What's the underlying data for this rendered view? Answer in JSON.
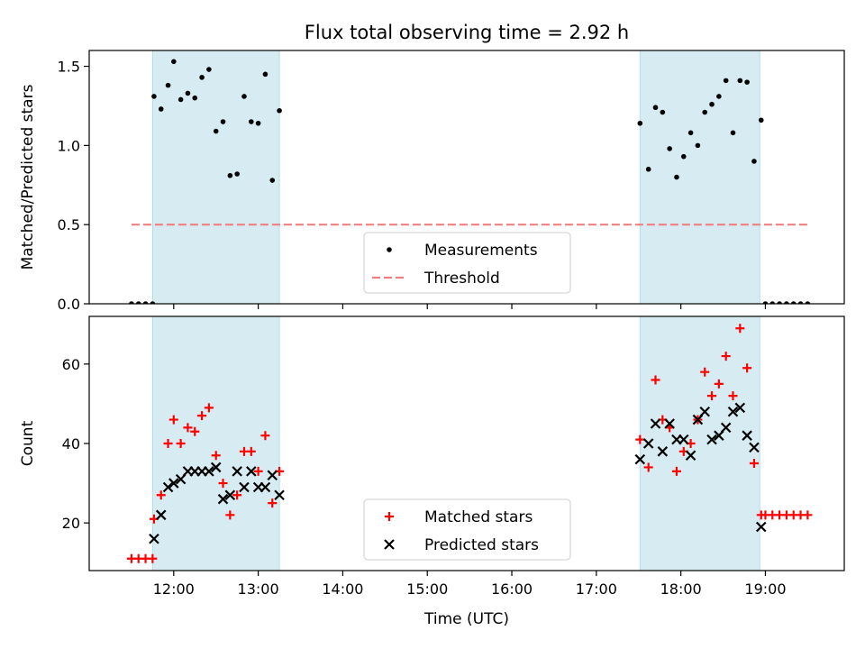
{
  "figure": {
    "title": "Flux total observing time = 2.92 h"
  },
  "chart_data": [
    {
      "type": "scatter",
      "panel": "top",
      "title": "Flux total observing time = 2.92 h",
      "ylabel": "Matched/Predicted stars",
      "xlabel": "",
      "x_unit": "time of day (UTC)",
      "xlim": [
        "11:00",
        "19:56"
      ],
      "ylim": [
        0,
        1.6
      ],
      "yticks": [
        0.0,
        0.5,
        1.0,
        1.5
      ],
      "ytick_labels": [
        "0.0",
        "0.5",
        "1.0",
        "1.5"
      ],
      "xticks": [
        "12:00",
        "13:00",
        "14:00",
        "15:00",
        "16:00",
        "17:00",
        "18:00",
        "19:00"
      ],
      "xtick_labels_shown": false,
      "shaded_spans": [
        {
          "start": "11:45",
          "end": "13:15",
          "color": "#add8e6"
        },
        {
          "start": "17:31",
          "end": "18:56",
          "color": "#add8e6"
        }
      ],
      "legend": {
        "placement": "lower center",
        "entries": [
          {
            "label": "Measurements",
            "marker": "dot",
            "color": "#000000"
          },
          {
            "label": "Threshold",
            "marker": "dashed-line",
            "color": "#f08080"
          }
        ]
      },
      "threshold": {
        "value": 0.5,
        "x_from": "11:30",
        "x_to": "19:30",
        "color": "#f08080",
        "style": "dashed"
      },
      "series": [
        {
          "name": "Measurements",
          "color": "#000000",
          "points": [
            [
              "11:30",
              0.0
            ],
            [
              "11:35",
              0.0
            ],
            [
              "11:40",
              0.0
            ],
            [
              "11:45",
              0.0
            ],
            [
              "11:46",
              1.31
            ],
            [
              "11:51",
              1.23
            ],
            [
              "11:56",
              1.38
            ],
            [
              "12:00",
              1.53
            ],
            [
              "12:05",
              1.29
            ],
            [
              "12:10",
              1.33
            ],
            [
              "12:15",
              1.3
            ],
            [
              "12:20",
              1.43
            ],
            [
              "12:25",
              1.48
            ],
            [
              "12:30",
              1.09
            ],
            [
              "12:35",
              1.15
            ],
            [
              "12:40",
              0.81
            ],
            [
              "12:45",
              0.82
            ],
            [
              "12:50",
              1.31
            ],
            [
              "12:55",
              1.15
            ],
            [
              "13:00",
              1.14
            ],
            [
              "13:05",
              1.45
            ],
            [
              "13:10",
              0.78
            ],
            [
              "13:15",
              1.22
            ],
            [
              "17:31",
              1.14
            ],
            [
              "17:37",
              0.85
            ],
            [
              "17:42",
              1.24
            ],
            [
              "17:47",
              1.21
            ],
            [
              "17:52",
              0.98
            ],
            [
              "17:57",
              0.8
            ],
            [
              "18:02",
              0.93
            ],
            [
              "18:07",
              1.08
            ],
            [
              "18:12",
              1.0
            ],
            [
              "18:17",
              1.21
            ],
            [
              "18:22",
              1.26
            ],
            [
              "18:27",
              1.31
            ],
            [
              "18:32",
              1.41
            ],
            [
              "18:37",
              1.08
            ],
            [
              "18:42",
              1.41
            ],
            [
              "18:47",
              1.4
            ],
            [
              "18:52",
              0.9
            ],
            [
              "18:57",
              1.16
            ],
            [
              "19:00",
              0.0
            ],
            [
              "19:05",
              0.0
            ],
            [
              "19:10",
              0.0
            ],
            [
              "19:15",
              0.0
            ],
            [
              "19:20",
              0.0
            ],
            [
              "19:25",
              0.0
            ],
            [
              "19:30",
              0.0
            ]
          ]
        }
      ]
    },
    {
      "type": "scatter",
      "panel": "bottom",
      "xlabel": "Time (UTC)",
      "ylabel": "Count",
      "xlim": [
        "11:00",
        "19:56"
      ],
      "ylim": [
        8,
        72
      ],
      "yticks": [
        20,
        40,
        60
      ],
      "ytick_labels": [
        "20",
        "40",
        "60"
      ],
      "xticks": [
        "12:00",
        "13:00",
        "14:00",
        "15:00",
        "16:00",
        "17:00",
        "18:00",
        "19:00"
      ],
      "xtick_labels": [
        "12:00",
        "13:00",
        "14:00",
        "15:00",
        "16:00",
        "17:00",
        "18:00",
        "19:00"
      ],
      "shaded_spans": [
        {
          "start": "11:45",
          "end": "13:15",
          "color": "#add8e6"
        },
        {
          "start": "17:31",
          "end": "18:56",
          "color": "#add8e6"
        }
      ],
      "legend": {
        "placement": "lower center",
        "entries": [
          {
            "label": "Matched stars",
            "marker": "plus",
            "color": "#ff0000"
          },
          {
            "label": "Predicted stars",
            "marker": "x",
            "color": "#000000"
          }
        ]
      },
      "series": [
        {
          "name": "Matched stars",
          "marker": "plus",
          "color": "#ff0000",
          "points": [
            [
              "11:30",
              11
            ],
            [
              "11:35",
              11
            ],
            [
              "11:40",
              11
            ],
            [
              "11:45",
              11
            ],
            [
              "11:46",
              21
            ],
            [
              "11:51",
              27
            ],
            [
              "11:56",
              40
            ],
            [
              "12:00",
              46
            ],
            [
              "12:05",
              40
            ],
            [
              "12:10",
              44
            ],
            [
              "12:15",
              43
            ],
            [
              "12:20",
              47
            ],
            [
              "12:25",
              49
            ],
            [
              "12:30",
              37
            ],
            [
              "12:35",
              30
            ],
            [
              "12:40",
              22
            ],
            [
              "12:45",
              27
            ],
            [
              "12:50",
              38
            ],
            [
              "12:55",
              38
            ],
            [
              "13:00",
              33
            ],
            [
              "13:05",
              42
            ],
            [
              "13:10",
              25
            ],
            [
              "13:15",
              33
            ],
            [
              "17:31",
              41
            ],
            [
              "17:37",
              34
            ],
            [
              "17:42",
              56
            ],
            [
              "17:47",
              46
            ],
            [
              "17:52",
              44
            ],
            [
              "17:57",
              33
            ],
            [
              "18:02",
              38
            ],
            [
              "18:07",
              40
            ],
            [
              "18:12",
              46
            ],
            [
              "18:17",
              58
            ],
            [
              "18:22",
              52
            ],
            [
              "18:27",
              55
            ],
            [
              "18:32",
              62
            ],
            [
              "18:37",
              52
            ],
            [
              "18:42",
              69
            ],
            [
              "18:47",
              59
            ],
            [
              "18:52",
              35
            ],
            [
              "18:57",
              22
            ],
            [
              "19:00",
              22
            ],
            [
              "19:05",
              22
            ],
            [
              "19:10",
              22
            ],
            [
              "19:15",
              22
            ],
            [
              "19:20",
              22
            ],
            [
              "19:25",
              22
            ],
            [
              "19:30",
              22
            ]
          ]
        },
        {
          "name": "Predicted stars",
          "marker": "x",
          "color": "#000000",
          "points": [
            [
              "11:46",
              16
            ],
            [
              "11:51",
              22
            ],
            [
              "11:56",
              29
            ],
            [
              "12:00",
              30
            ],
            [
              "12:05",
              31
            ],
            [
              "12:10",
              33
            ],
            [
              "12:15",
              33
            ],
            [
              "12:20",
              33
            ],
            [
              "12:25",
              33
            ],
            [
              "12:30",
              34
            ],
            [
              "12:35",
              26
            ],
            [
              "12:40",
              27
            ],
            [
              "12:45",
              33
            ],
            [
              "12:50",
              29
            ],
            [
              "12:55",
              33
            ],
            [
              "13:00",
              29
            ],
            [
              "13:05",
              29
            ],
            [
              "13:10",
              32
            ],
            [
              "13:15",
              27
            ],
            [
              "17:31",
              36
            ],
            [
              "17:37",
              40
            ],
            [
              "17:42",
              45
            ],
            [
              "17:47",
              38
            ],
            [
              "17:52",
              45
            ],
            [
              "17:57",
              41
            ],
            [
              "18:02",
              41
            ],
            [
              "18:07",
              37
            ],
            [
              "18:12",
              46
            ],
            [
              "18:17",
              48
            ],
            [
              "18:22",
              41
            ],
            [
              "18:27",
              42
            ],
            [
              "18:32",
              44
            ],
            [
              "18:37",
              48
            ],
            [
              "18:42",
              49
            ],
            [
              "18:47",
              42
            ],
            [
              "18:52",
              39
            ],
            [
              "18:57",
              19
            ]
          ]
        }
      ]
    }
  ]
}
